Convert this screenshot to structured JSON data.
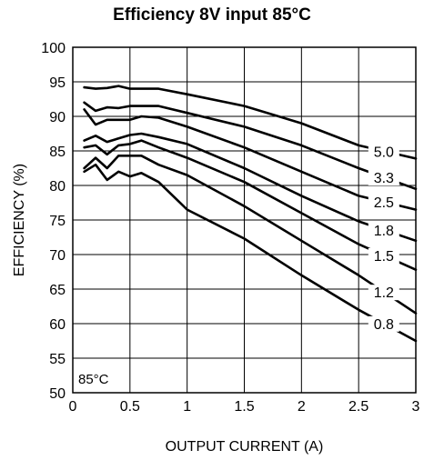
{
  "chart_data": {
    "type": "line",
    "title": "Efficiency 8V input 85°C",
    "xlabel": "OUTPUT CURRENT (A)",
    "ylabel": "EFFICIENCY (%)",
    "xlim": [
      0,
      3
    ],
    "ylim": [
      50,
      100
    ],
    "xticks": [
      0,
      0.5,
      1,
      1.5,
      2,
      2.5,
      3
    ],
    "xtick_labels": [
      "0",
      "0.5",
      "1",
      "1.5",
      "2",
      "2.5",
      "3"
    ],
    "yticks": [
      50,
      55,
      60,
      65,
      70,
      75,
      80,
      85,
      90,
      95,
      100
    ],
    "ytick_labels": [
      "50",
      "55",
      "60",
      "65",
      "70",
      "75",
      "80",
      "85",
      "90",
      "95",
      "100"
    ],
    "grid": true,
    "annotation": "85°C",
    "series": [
      {
        "name": "5.0",
        "x": [
          0.1,
          0.2,
          0.3,
          0.4,
          0.5,
          0.75,
          1.0,
          1.5,
          2.0,
          2.5,
          3.0
        ],
        "y": [
          94.2,
          94.0,
          94.1,
          94.4,
          94.0,
          94.0,
          93.2,
          91.5,
          89.0,
          85.8,
          83.9
        ]
      },
      {
        "name": "3.3",
        "x": [
          0.1,
          0.2,
          0.3,
          0.4,
          0.5,
          0.75,
          1.0,
          1.5,
          2.0,
          2.5,
          3.0
        ],
        "y": [
          92.0,
          90.8,
          91.3,
          91.2,
          91.5,
          91.5,
          90.5,
          88.5,
          85.8,
          82.5,
          79.5
        ]
      },
      {
        "name": "2.5",
        "x": [
          0.1,
          0.2,
          0.3,
          0.4,
          0.5,
          0.6,
          0.75,
          1.0,
          1.5,
          2.0,
          2.5,
          3.0
        ],
        "y": [
          91.0,
          88.8,
          89.5,
          89.5,
          89.5,
          90.0,
          89.8,
          88.5,
          85.5,
          82.0,
          78.5,
          76.5
        ]
      },
      {
        "name": "1.8",
        "x": [
          0.1,
          0.2,
          0.3,
          0.4,
          0.5,
          0.6,
          0.75,
          1.0,
          1.5,
          2.0,
          2.5,
          3.0
        ],
        "y": [
          86.5,
          87.2,
          86.3,
          86.8,
          87.3,
          87.5,
          87.0,
          86.0,
          82.5,
          78.5,
          74.8,
          72.0
        ]
      },
      {
        "name": "1.5",
        "x": [
          0.1,
          0.2,
          0.3,
          0.4,
          0.5,
          0.6,
          0.75,
          1.0,
          1.5,
          2.0,
          2.5,
          3.0
        ],
        "y": [
          85.5,
          85.8,
          84.5,
          85.8,
          86.0,
          86.5,
          85.5,
          84.0,
          80.5,
          76.0,
          71.5,
          67.8
        ]
      },
      {
        "name": "1.2",
        "x": [
          0.1,
          0.2,
          0.3,
          0.4,
          0.5,
          0.6,
          0.75,
          1.0,
          1.5,
          2.0,
          2.5,
          3.0
        ],
        "y": [
          82.5,
          84.0,
          82.5,
          84.3,
          84.3,
          84.3,
          83.0,
          81.5,
          77.0,
          72.0,
          67.0,
          61.5
        ]
      },
      {
        "name": "0.8",
        "x": [
          0.1,
          0.2,
          0.3,
          0.4,
          0.5,
          0.6,
          0.75,
          1.0,
          1.5,
          2.0,
          2.5,
          3.0
        ],
        "y": [
          82.0,
          83.0,
          80.8,
          82.0,
          81.3,
          81.8,
          80.5,
          76.5,
          72.3,
          67.0,
          62.0,
          57.5
        ]
      }
    ]
  }
}
